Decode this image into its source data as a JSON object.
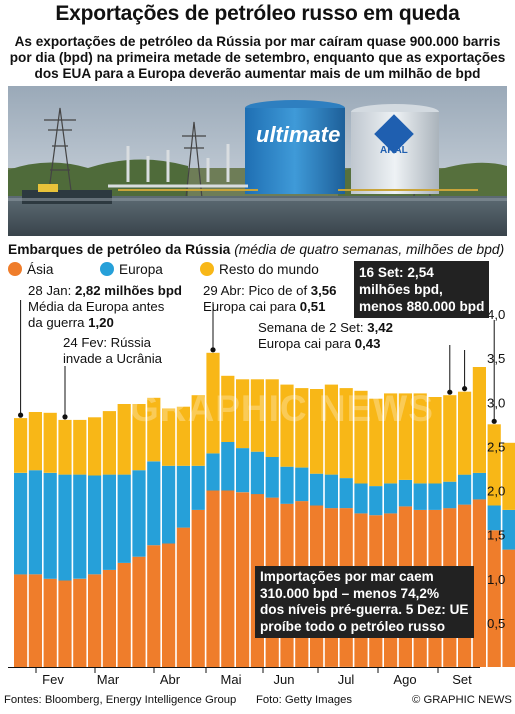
{
  "header": {
    "title": "Exportações de petróleo russo em queda",
    "subtitle_lines": [
      "As exportações de petróleo da Rússia por mar caíram quase 900.000 barris",
      "por dia (bpd) na primeira metade de setembro, enquanto que as exportações",
      "dos EUA para a Europa deverão aumentar mais de um milhão de bpd"
    ]
  },
  "photo": {
    "tank_logo_1": "ultimate",
    "tank_logo_2": "ARAL"
  },
  "colors": {
    "asia": "#ef7d2b",
    "europe": "#26a0d9",
    "rest": "#f8b717",
    "ink": "#111111"
  },
  "chart_data": {
    "type": "bar",
    "stacked": true,
    "title": "Embarques de petróleo da Rússia",
    "unit_note": "(média de quatro semanas, milhões de bpd)",
    "legend": [
      "Ásia",
      "Europa",
      "Resto do mundo"
    ],
    "x_month_labels": [
      "Fev",
      "Mar",
      "Abr",
      "Mai",
      "Jun",
      "Jul",
      "Ago",
      "Set"
    ],
    "y_ticks": [
      "0,5",
      "1,0",
      "1,5",
      "2,0",
      "2,5",
      "3,0",
      "3,5",
      "4,0"
    ],
    "ylim": [
      0,
      4.0
    ],
    "grid": false,
    "series": [
      {
        "name": "Ásia",
        "values": [
          1.05,
          1.05,
          1.0,
          0.98,
          1.0,
          1.05,
          1.1,
          1.18,
          1.25,
          1.38,
          1.4,
          1.58,
          1.78,
          2.0,
          2.0,
          1.98,
          1.96,
          1.92,
          1.85,
          1.88,
          1.83,
          1.8,
          1.8,
          1.74,
          1.72,
          1.74,
          1.82,
          1.78,
          1.78,
          1.8,
          1.84,
          1.9,
          1.55,
          1.33
        ]
      },
      {
        "name": "Europa",
        "values": [
          1.15,
          1.18,
          1.2,
          1.2,
          1.18,
          1.12,
          1.08,
          1.0,
          0.98,
          0.95,
          0.88,
          0.7,
          0.5,
          0.42,
          0.55,
          0.5,
          0.48,
          0.46,
          0.42,
          0.38,
          0.36,
          0.38,
          0.34,
          0.34,
          0.33,
          0.34,
          0.3,
          0.3,
          0.3,
          0.3,
          0.34,
          0.3,
          0.28,
          0.45
        ]
      },
      {
        "name": "Resto do mundo",
        "values": [
          0.62,
          0.66,
          0.68,
          0.62,
          0.62,
          0.66,
          0.72,
          0.8,
          0.75,
          0.72,
          0.65,
          0.67,
          0.8,
          1.14,
          0.75,
          0.78,
          0.82,
          0.88,
          0.93,
          0.9,
          0.96,
          1.02,
          1.02,
          1.05,
          0.99,
          1.02,
          0.98,
          1.02,
          0.98,
          0.98,
          0.94,
          1.2,
          0.92,
          0.76
        ]
      }
    ],
    "annotations": {
      "jan28": {
        "date": "28 Jan:",
        "value": "2,82 milhões bpd",
        "line2": "Média da Europa antes",
        "line3": "da guerra",
        "line3_value": "1,20"
      },
      "feb24": {
        "line1": "24 Fev: Rússia",
        "line2": "invade a Ucrânia"
      },
      "apr29": {
        "line1_a": "29 Abr: Pico de of",
        "line1_b": "3,56",
        "line2_a": "Europa cai para",
        "line2_b": "0,51"
      },
      "sep2": {
        "line1_a": "Semana de 2 Set:",
        "line1_b": "3,42",
        "line2_a": "Europa cai para",
        "line2_b": "0,43"
      },
      "sep16": {
        "line1": "16 Set: 2,54",
        "line2": "milhões bpd,",
        "line3": "menos 880.000 bpd"
      },
      "dec5": {
        "line1": "Importações por mar caem",
        "line2": "310.000 bpd – menos 74,2%",
        "line3": "dos níveis pré-guerra. 5 Dez: UE",
        "line4": "proíbe todo o petróleo russo"
      }
    }
  },
  "footer": {
    "sources": "Fontes: Bloomberg, Energy Intelligence Group",
    "photo_credit": "Foto: Getty Images",
    "brand": "© GRAPHIC NEWS"
  },
  "watermark": "GRAPHIC NEWS"
}
